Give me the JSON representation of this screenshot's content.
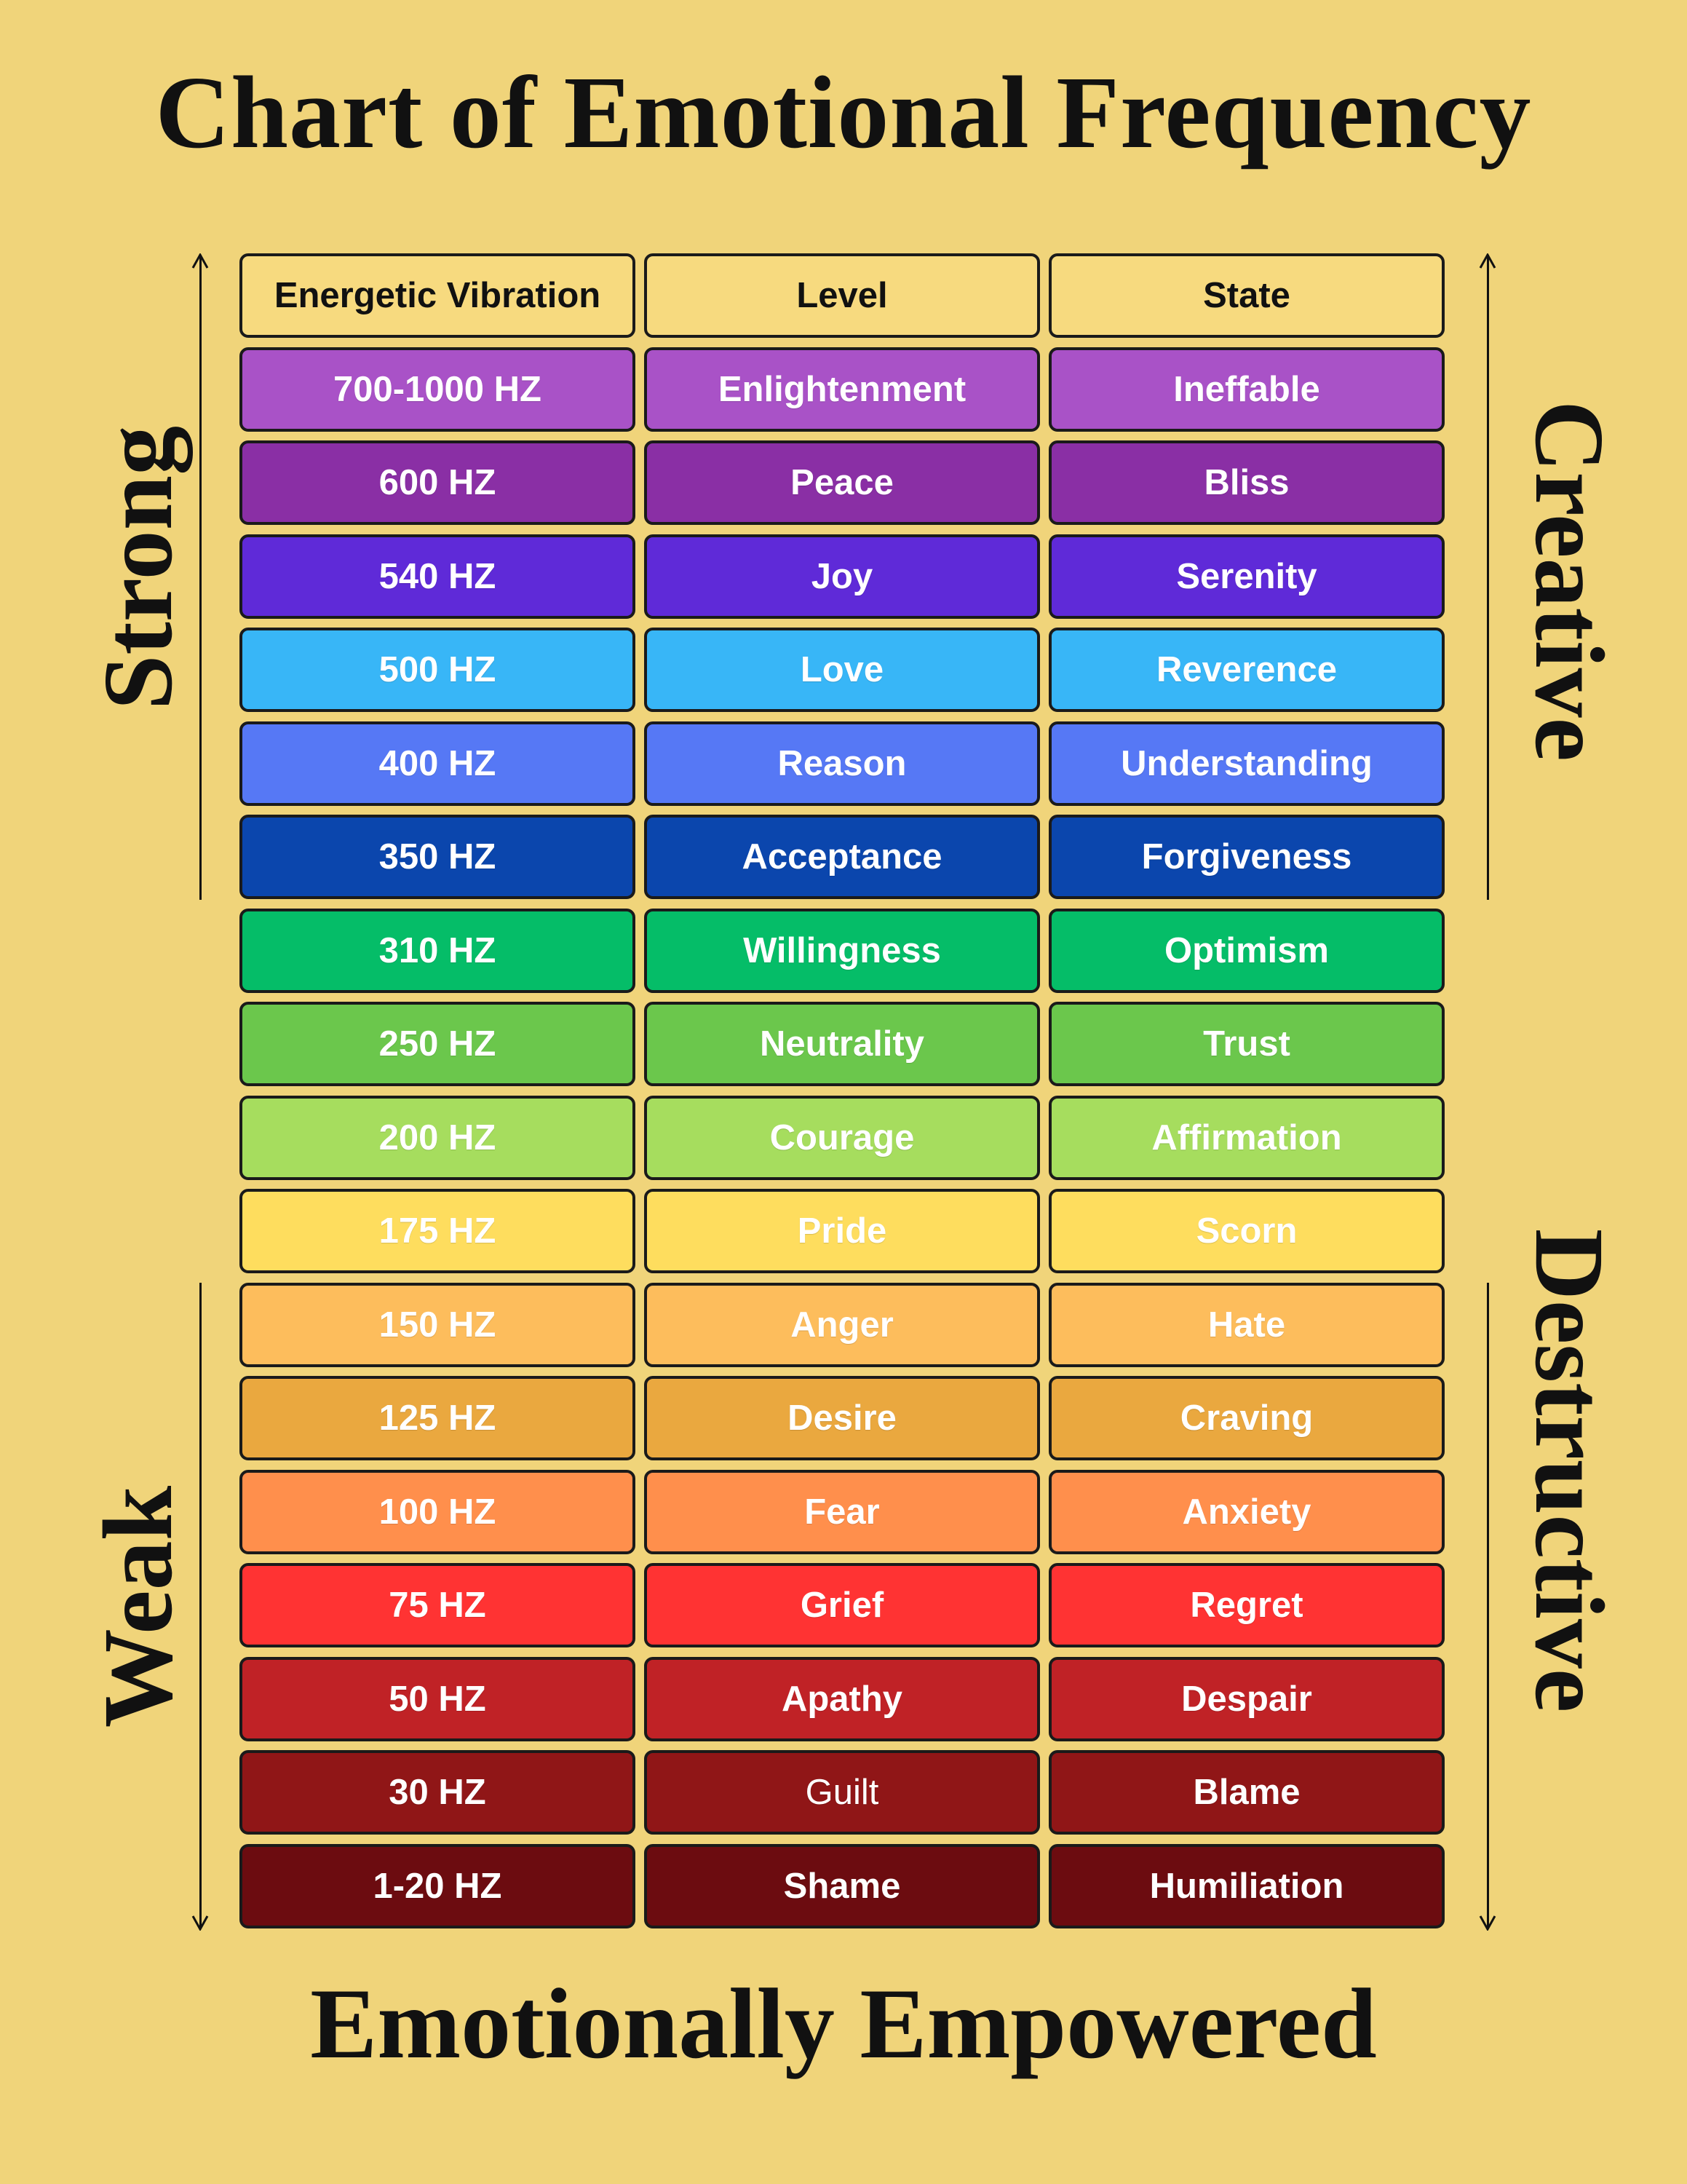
{
  "title": "Chart of Emotional Frequency",
  "footer": "Emotionally Empowered",
  "side_labels": {
    "top_left": "Strong",
    "bottom_left": "Weak",
    "top_right": "Creative",
    "bottom_right": "Destructive"
  },
  "headers": [
    "Energetic Vibration",
    "Level",
    "State"
  ],
  "rows": [
    {
      "hz": "700-1000 HZ",
      "level": "Enlightenment",
      "state": "Ineffable",
      "color": "#a952c7"
    },
    {
      "hz": "600 HZ",
      "level": "Peace",
      "state": "Bliss",
      "color": "#8a2fa5"
    },
    {
      "hz": "540 HZ",
      "level": "Joy",
      "state": "Serenity",
      "color": "#5f2ad8"
    },
    {
      "hz": "500 HZ",
      "level": "Love",
      "state": "Reverence",
      "color": "#38b6f7"
    },
    {
      "hz": "400 HZ",
      "level": "Reason",
      "state": "Understanding",
      "color": "#5678f5"
    },
    {
      "hz": "350 HZ",
      "level": "Acceptance",
      "state": "Forgiveness",
      "color": "#0b46ad"
    },
    {
      "hz": "310 HZ",
      "level": "Willingness",
      "state": "Optimism",
      "color": "#05bd68"
    },
    {
      "hz": "250 HZ",
      "level": "Neutrality",
      "state": "Trust",
      "color": "#6bc74c"
    },
    {
      "hz": "200 HZ",
      "level": "Courage",
      "state": "Affirmation",
      "color": "#a6dd5e"
    },
    {
      "hz": "175 HZ",
      "level": "Pride",
      "state": "Scorn",
      "color": "#fedd5e"
    },
    {
      "hz": "150 HZ",
      "level": "Anger",
      "state": "Hate",
      "color": "#fdbd5c"
    },
    {
      "hz": "125 HZ",
      "level": "Desire",
      "state": "Craving",
      "color": "#eaa83f"
    },
    {
      "hz": "100 HZ",
      "level": "Fear",
      "state": "Anxiety",
      "color": "#ff8f4c"
    },
    {
      "hz": "75 HZ",
      "level": "Grief",
      "state": "Regret",
      "color": "#ff3333"
    },
    {
      "hz": "50 HZ",
      "level": "Apathy",
      "state": "Despair",
      "color": "#c02226"
    },
    {
      "hz": "30 HZ",
      "level": "Guilt",
      "state": "Blame",
      "color": "#901617"
    },
    {
      "hz": "1-20 HZ",
      "level": "Shame",
      "state": "Humiliation",
      "color": "#6c0c10"
    }
  ]
}
